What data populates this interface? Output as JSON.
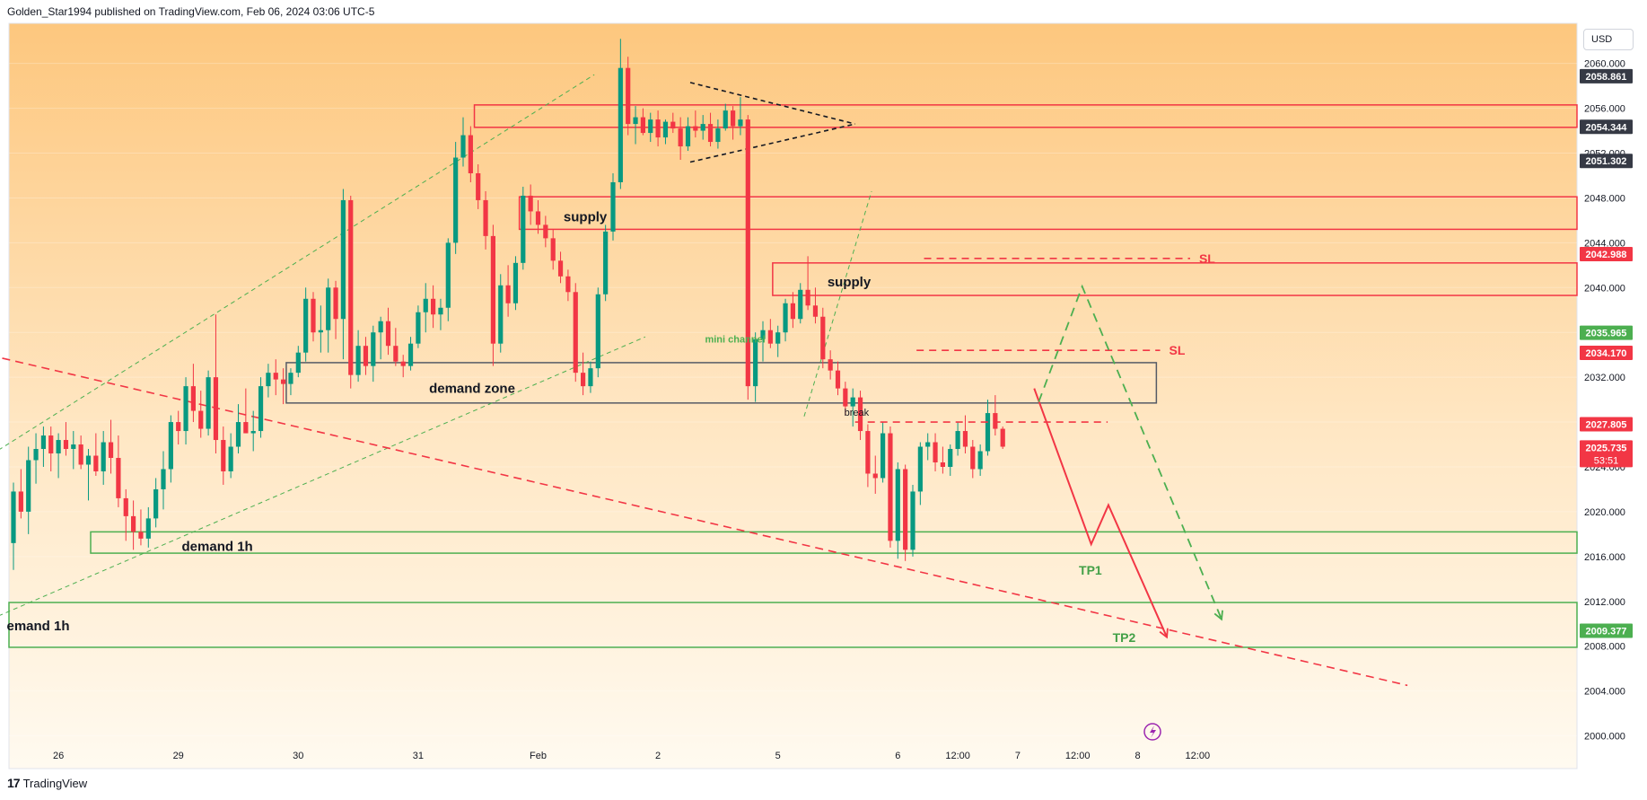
{
  "header": {
    "text": "Golden_Star1994 published on TradingView.com, Feb 06, 2024 03:06 UTC-5"
  },
  "footer": {
    "logo_text": "TradingView"
  },
  "currency": "USD",
  "colors": {
    "up": "#089981",
    "down": "#f23645",
    "zone_red": "#f23645",
    "zone_green": "#4caf50",
    "zone_gray": "#555b66",
    "bg_top": "#fdc77e",
    "bg_bottom": "#fffaf0"
  },
  "chart_data": {
    "type": "candlestick",
    "instrument_currency": "USD",
    "ylim": [
      1999,
      2063.5
    ],
    "y_ticks": [
      2000,
      2004,
      2008,
      2012,
      2016,
      2020,
      2024,
      2028,
      2032,
      2036,
      2040,
      2044,
      2048,
      2052,
      2056,
      2060
    ],
    "y_tick_labels": [
      "2000.000",
      "2004.000",
      "2008.000",
      "2012.000",
      "2016.000",
      "2020.000",
      "2024.000",
      "2028.000",
      "2032.000",
      "2036.000",
      "2040.000",
      "2044.000",
      "2048.000",
      "2052.000",
      "2056.000",
      "2060.000"
    ],
    "x_ticks": [
      {
        "label": "26",
        "bar": 6
      },
      {
        "label": "29",
        "bar": 22
      },
      {
        "label": "30",
        "bar": 38
      },
      {
        "label": "31",
        "bar": 54
      },
      {
        "label": "Feb",
        "bar": 70
      },
      {
        "label": "2",
        "bar": 86
      },
      {
        "label": "5",
        "bar": 102
      },
      {
        "label": "6",
        "bar": 118
      },
      {
        "label": "12:00",
        "bar": 126
      },
      {
        "label": "7",
        "bar": 134
      },
      {
        "label": "12:00",
        "bar": 142
      },
      {
        "label": "8",
        "bar": 150
      },
      {
        "label": "12:00",
        "bar": 158
      }
    ],
    "candles": [
      [
        2017.2,
        2022.6,
        2014.8,
        2021.8
      ],
      [
        2021.8,
        2023.8,
        2019.4,
        2020.0
      ],
      [
        2020.0,
        2025.8,
        2018.0,
        2024.6
      ],
      [
        2024.6,
        2027.0,
        2022.5,
        2025.6
      ],
      [
        2025.6,
        2027.6,
        2024.0,
        2026.8
      ],
      [
        2026.8,
        2027.6,
        2023.6,
        2025.2
      ],
      [
        2025.2,
        2027.0,
        2023.0,
        2026.4
      ],
      [
        2026.4,
        2028.0,
        2025.0,
        2025.6
      ],
      [
        2025.6,
        2027.2,
        2023.8,
        2026.0
      ],
      [
        2026.0,
        2026.8,
        2023.8,
        2024.2
      ],
      [
        2024.2,
        2025.6,
        2021.0,
        2025.0
      ],
      [
        2025.0,
        2027.0,
        2023.2,
        2023.6
      ],
      [
        2023.6,
        2027.2,
        2022.4,
        2026.2
      ],
      [
        2026.2,
        2028.2,
        2023.4,
        2024.8
      ],
      [
        2024.8,
        2026.8,
        2020.4,
        2021.2
      ],
      [
        2021.2,
        2022.0,
        2017.4,
        2019.6
      ],
      [
        2019.6,
        2021.0,
        2016.6,
        2018.2
      ],
      [
        2018.2,
        2020.2,
        2017.0,
        2017.6
      ],
      [
        2017.6,
        2020.4,
        2016.8,
        2019.4
      ],
      [
        2019.4,
        2023.0,
        2018.6,
        2022.0
      ],
      [
        2022.0,
        2025.4,
        2020.2,
        2023.8
      ],
      [
        2023.8,
        2028.6,
        2022.6,
        2028.0
      ],
      [
        2028.0,
        2029.0,
        2026.0,
        2027.2
      ],
      [
        2027.2,
        2032.0,
        2026.0,
        2031.2
      ],
      [
        2031.2,
        2033.2,
        2028.0,
        2029.0
      ],
      [
        2029.0,
        2030.8,
        2026.6,
        2027.4
      ],
      [
        2027.4,
        2032.6,
        2026.8,
        2032.0
      ],
      [
        2032.0,
        2037.6,
        2025.2,
        2026.4
      ],
      [
        2026.4,
        2027.6,
        2022.4,
        2023.6
      ],
      [
        2023.6,
        2027.0,
        2023.0,
        2025.8
      ],
      [
        2025.8,
        2029.6,
        2025.2,
        2028.0
      ],
      [
        2028.0,
        2031.0,
        2027.0,
        2027.0
      ],
      [
        2027.0,
        2029.0,
        2025.4,
        2027.2
      ],
      [
        2027.2,
        2032.0,
        2026.6,
        2031.2
      ],
      [
        2031.2,
        2033.2,
        2030.2,
        2032.4
      ],
      [
        2032.4,
        2033.6,
        2030.4,
        2031.8
      ],
      [
        2031.8,
        2032.8,
        2029.6,
        2031.4
      ],
      [
        2031.4,
        2032.8,
        2030.4,
        2032.4
      ],
      [
        2032.4,
        2034.8,
        2032.0,
        2034.2
      ],
      [
        2034.2,
        2040.0,
        2033.4,
        2039.0
      ],
      [
        2039.0,
        2039.6,
        2035.2,
        2036.0
      ],
      [
        2036.0,
        2038.4,
        2034.2,
        2036.2
      ],
      [
        2036.2,
        2040.8,
        2034.2,
        2040.0
      ],
      [
        2040.0,
        2040.6,
        2035.4,
        2037.2
      ],
      [
        2037.2,
        2048.8,
        2033.6,
        2047.8
      ],
      [
        2047.8,
        2048.2,
        2031.0,
        2032.2
      ],
      [
        2032.2,
        2036.2,
        2031.6,
        2034.8
      ],
      [
        2034.8,
        2035.6,
        2032.2,
        2033.0
      ],
      [
        2033.0,
        2036.6,
        2031.6,
        2036.0
      ],
      [
        2036.0,
        2037.4,
        2033.6,
        2037.0
      ],
      [
        2037.0,
        2038.2,
        2034.0,
        2034.8
      ],
      [
        2034.8,
        2036.4,
        2033.0,
        2033.4
      ],
      [
        2033.4,
        2034.0,
        2032.0,
        2033.0
      ],
      [
        2033.0,
        2035.6,
        2032.6,
        2035.0
      ],
      [
        2035.0,
        2038.4,
        2034.6,
        2037.8
      ],
      [
        2037.8,
        2040.4,
        2036.0,
        2039.0
      ],
      [
        2039.0,
        2040.2,
        2036.4,
        2037.6
      ],
      [
        2037.6,
        2039.0,
        2036.2,
        2038.2
      ],
      [
        2038.2,
        2044.4,
        2037.0,
        2044.0
      ],
      [
        2044.0,
        2053.0,
        2043.0,
        2051.6
      ],
      [
        2051.6,
        2055.2,
        2050.8,
        2053.6
      ],
      [
        2053.6,
        2054.4,
        2049.4,
        2050.2
      ],
      [
        2050.2,
        2051.0,
        2047.0,
        2047.8
      ],
      [
        2047.8,
        2048.6,
        2043.4,
        2044.6
      ],
      [
        2044.6,
        2045.6,
        2033.0,
        2035.0
      ],
      [
        2035.0,
        2041.2,
        2034.2,
        2040.2
      ],
      [
        2040.2,
        2042.0,
        2037.4,
        2038.6
      ],
      [
        2038.6,
        2042.8,
        2038.0,
        2042.2
      ],
      [
        2042.2,
        2049.0,
        2041.6,
        2048.2
      ],
      [
        2048.2,
        2049.2,
        2045.6,
        2046.8
      ],
      [
        2046.8,
        2047.8,
        2044.8,
        2045.6
      ],
      [
        2045.6,
        2046.4,
        2043.6,
        2044.4
      ],
      [
        2044.4,
        2045.2,
        2041.6,
        2042.4
      ],
      [
        2042.4,
        2043.2,
        2040.4,
        2041.0
      ],
      [
        2041.0,
        2041.6,
        2038.8,
        2039.6
      ],
      [
        2039.6,
        2040.4,
        2031.6,
        2032.4
      ],
      [
        2032.4,
        2034.2,
        2030.4,
        2031.2
      ],
      [
        2031.2,
        2033.4,
        2030.6,
        2032.8
      ],
      [
        2032.8,
        2040.0,
        2032.0,
        2039.4
      ],
      [
        2039.4,
        2045.6,
        2038.8,
        2045.0
      ],
      [
        2045.0,
        2050.2,
        2044.2,
        2049.4
      ],
      [
        2049.4,
        2062.2,
        2048.8,
        2059.6
      ],
      [
        2059.6,
        2060.6,
        2053.6,
        2054.6
      ],
      [
        2054.6,
        2056.2,
        2052.8,
        2055.2
      ],
      [
        2055.2,
        2056.0,
        2053.6,
        2053.8
      ],
      [
        2053.8,
        2055.6,
        2053.0,
        2055.0
      ],
      [
        2055.0,
        2055.8,
        2052.6,
        2053.4
      ],
      [
        2053.4,
        2055.0,
        2052.8,
        2054.8
      ],
      [
        2054.8,
        2055.6,
        2053.8,
        2054.2
      ],
      [
        2054.2,
        2055.2,
        2051.4,
        2052.6
      ],
      [
        2052.6,
        2055.2,
        2052.2,
        2054.4
      ],
      [
        2054.4,
        2055.8,
        2053.4,
        2054.0
      ],
      [
        2054.0,
        2055.4,
        2053.2,
        2054.6
      ],
      [
        2054.6,
        2055.6,
        2052.6,
        2053.0
      ],
      [
        2053.0,
        2055.0,
        2052.4,
        2054.2
      ],
      [
        2054.2,
        2056.4,
        2054.0,
        2055.8
      ],
      [
        2055.8,
        2056.2,
        2053.2,
        2054.4
      ],
      [
        2054.4,
        2057.0,
        2053.6,
        2055.0
      ],
      [
        2055.0,
        2055.4,
        2030.0,
        2031.2
      ],
      [
        2031.2,
        2036.0,
        2029.8,
        2035.4
      ],
      [
        2035.4,
        2037.0,
        2033.4,
        2036.2
      ],
      [
        2036.2,
        2037.2,
        2034.6,
        2035.0
      ],
      [
        2035.0,
        2036.6,
        2033.8,
        2036.0
      ],
      [
        2036.0,
        2039.0,
        2035.2,
        2038.6
      ],
      [
        2038.6,
        2039.6,
        2036.4,
        2037.2
      ],
      [
        2037.2,
        2040.4,
        2036.8,
        2039.8
      ],
      [
        2039.8,
        2042.8,
        2038.0,
        2038.4
      ],
      [
        2038.4,
        2040.0,
        2036.8,
        2037.4
      ],
      [
        2037.4,
        2038.2,
        2032.8,
        2033.6
      ],
      [
        2033.6,
        2034.4,
        2031.8,
        2032.6
      ],
      [
        2032.6,
        2033.4,
        2030.4,
        2031.0
      ],
      [
        2031.0,
        2031.6,
        2028.6,
        2029.4
      ],
      [
        2029.4,
        2031.0,
        2027.6,
        2030.2
      ],
      [
        2030.2,
        2030.8,
        2026.4,
        2027.2
      ],
      [
        2027.2,
        2027.8,
        2022.2,
        2023.4
      ],
      [
        2023.4,
        2025.0,
        2021.6,
        2023.0
      ],
      [
        2023.0,
        2028.0,
        2022.6,
        2027.0
      ],
      [
        2027.0,
        2027.6,
        2016.8,
        2017.4
      ],
      [
        2017.4,
        2024.4,
        2015.8,
        2023.8
      ],
      [
        2023.8,
        2024.2,
        2015.6,
        2016.6
      ],
      [
        2016.6,
        2022.4,
        2016.0,
        2021.8
      ],
      [
        2021.8,
        2026.2,
        2020.6,
        2025.8
      ],
      [
        2025.8,
        2027.0,
        2024.6,
        2026.2
      ],
      [
        2026.2,
        2027.0,
        2023.6,
        2024.4
      ],
      [
        2024.4,
        2025.8,
        2023.4,
        2024.0
      ],
      [
        2024.0,
        2026.0,
        2023.2,
        2025.6
      ],
      [
        2025.6,
        2028.0,
        2025.0,
        2027.2
      ],
      [
        2027.2,
        2028.6,
        2025.2,
        2025.8
      ],
      [
        2025.8,
        2026.4,
        2023.0,
        2023.8
      ],
      [
        2023.8,
        2026.0,
        2023.2,
        2025.4
      ],
      [
        2025.4,
        2030.0,
        2025.0,
        2028.8
      ],
      [
        2028.8,
        2030.4,
        2026.8,
        2027.4
      ],
      [
        2027.4,
        2027.6,
        2025.6,
        2025.8
      ]
    ],
    "zones": [
      {
        "label": "",
        "color": "red",
        "from_bar": 61.5,
        "to_bar": "edge",
        "top": 2056.3,
        "bottom": 2054.3
      },
      {
        "label": "supply",
        "color": "red",
        "from_bar": 67.5,
        "to_bar": "edge",
        "top": 2048.1,
        "bottom": 2045.2
      },
      {
        "label": "supply",
        "color": "red",
        "from_bar": 101.3,
        "to_bar": "edge",
        "top": 2042.2,
        "bottom": 2039.3
      },
      {
        "label": "demand zone",
        "color": "gray",
        "from_bar": 36.4,
        "to_bar": 152.5,
        "top": 2033.3,
        "bottom": 2029.7
      },
      {
        "label": "demand 1h",
        "color": "green",
        "from_bar": 10.3,
        "to_bar": "edge",
        "top": 2018.2,
        "bottom": 2016.3
      },
      {
        "label": "emand 1h",
        "color": "green",
        "from_bar": -2,
        "to_bar": "edge",
        "top": 2011.9,
        "bottom": 2007.9
      }
    ],
    "trendlines": [
      {
        "type": "dashed-green",
        "from": [
          -2,
          2025.5
        ],
        "to": [
          77.5,
          2059.0
        ]
      },
      {
        "type": "dashed-green",
        "from": [
          -2,
          2010.7
        ],
        "to": [
          84.3,
          2035.6
        ]
      },
      {
        "type": "dashed-red",
        "from": [
          -1.5,
          2033.7
        ],
        "to": [
          186,
          2004.5
        ]
      },
      {
        "type": "dashed-green",
        "from": [
          105.5,
          2028.5
        ],
        "to": [
          114.5,
          2048.6
        ]
      },
      {
        "type": "dashed-black",
        "from": [
          90.3,
          2058.3
        ],
        "to": [
          112.3,
          2054.6
        ]
      },
      {
        "type": "dashed-black",
        "from": [
          90.3,
          2051.2
        ],
        "to": [
          112.3,
          2054.6
        ]
      }
    ],
    "levels": [
      {
        "label": "SL",
        "price": 2042.6,
        "from_bar": 121.5,
        "to_bar": 157
      },
      {
        "label": "SL",
        "price": 2034.4,
        "from_bar": 120.5,
        "to_bar": 153
      },
      {
        "label": "break",
        "price": 2028.0,
        "from_bar": 112.3,
        "to_bar": 146
      }
    ],
    "projections": [
      {
        "label": "TP1",
        "color": "red",
        "points": [
          [
            136.2,
            2031.0
          ],
          [
            143.8,
            2017.1
          ],
          [
            146.1,
            2020.6
          ],
          [
            153.9,
            2008.8
          ]
        ]
      },
      {
        "label": "TP2",
        "color": "green",
        "points": [
          [
            136.8,
            2029.8
          ],
          [
            142.6,
            2040.1
          ],
          [
            161.2,
            2010.4
          ]
        ]
      }
    ],
    "annotations": [
      {
        "text": "mini channel",
        "bar": 96.3,
        "price": 2035.4
      },
      {
        "text": "break",
        "bar": 112.5,
        "price": 2028.9
      },
      {
        "text": "TP1",
        "bar": 143.7,
        "price": 2014.7
      },
      {
        "text": "TP2",
        "bar": 148.2,
        "price": 2008.7
      }
    ],
    "price_labels": [
      {
        "text": "2058.861",
        "price": 2058.861,
        "color": "#363a45"
      },
      {
        "text": "2054.344",
        "price": 2054.344,
        "color": "#363a45"
      },
      {
        "text": "2051.302",
        "price": 2051.302,
        "color": "#363a45"
      },
      {
        "text": "2042.988",
        "price": 2042.988,
        "color": "#f23645"
      },
      {
        "text": "2035.965",
        "price": 2035.965,
        "color": "#4caf50"
      },
      {
        "text": "2034.170",
        "price": 2034.17,
        "color": "#f23645"
      },
      {
        "text": "2027.805",
        "price": 2027.805,
        "color": "#f23645"
      },
      {
        "text": "2025.735",
        "price": 2025.735,
        "color": "#f23645",
        "sub": "53:51"
      },
      {
        "text": "2009.377",
        "price": 2009.377,
        "color": "#4caf50"
      }
    ]
  }
}
